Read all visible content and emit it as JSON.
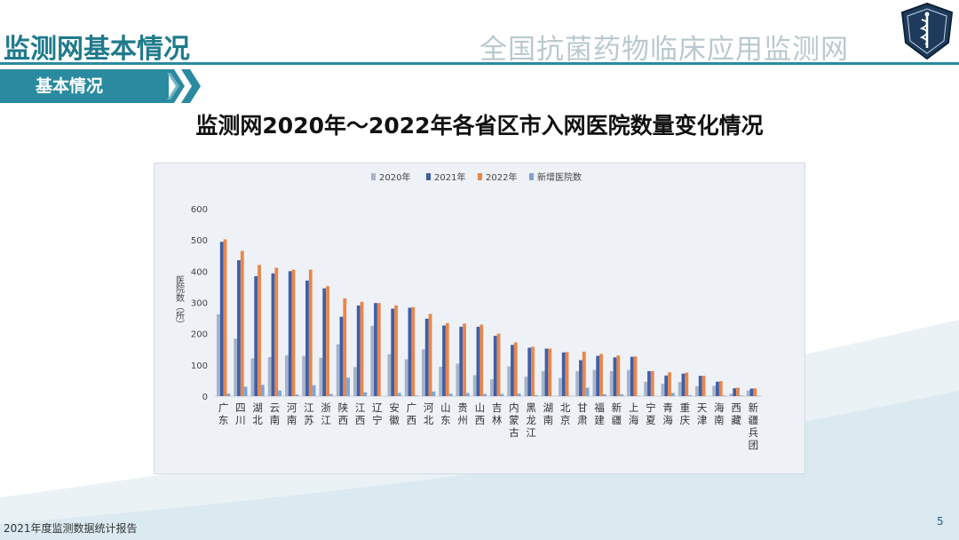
{
  "header": {
    "title": "监测网基本情况",
    "network_name": "全国抗菌药物临床应用监测网"
  },
  "section": {
    "label": "基本情况"
  },
  "chart_title": "监测网2020年～2022年各省区市入网医院数量变化情况",
  "footer": {
    "report": "2021年度监测数据统计报告",
    "page": "5"
  },
  "colors": {
    "accent": "#2a8aa0",
    "s2020": "#a5b4c8",
    "s2021": "#3f5ea8",
    "s2022": "#e8874a",
    "snew": "#7ca6d6"
  },
  "chart_data": {
    "type": "bar",
    "ylabel": "医院数（所）",
    "ylim": [
      0,
      600
    ],
    "yticks": [
      0,
      100,
      200,
      300,
      400,
      500,
      600
    ],
    "grid": false,
    "legend": "top-center",
    "categories": [
      "广东",
      "四川",
      "湖北",
      "云南",
      "河南",
      "江苏",
      "浙江",
      "陕西",
      "江西",
      "辽宁",
      "安徽",
      "广西",
      "河北",
      "山东",
      "贵州",
      "山西",
      "吉林",
      "内蒙古",
      "黑龙江",
      "湖南",
      "北京",
      "甘肃",
      "福建",
      "新疆",
      "上海",
      "宁夏",
      "青海",
      "重庆",
      "天津",
      "海南",
      "西藏",
      "新疆兵团"
    ],
    "series": [
      {
        "name": "2020年",
        "values": [
          262,
          184,
          121,
          125,
          131,
          129,
          123,
          166,
          93,
          225,
          134,
          118,
          150,
          94,
          104,
          67,
          54,
          95,
          62,
          80,
          58,
          80,
          84,
          80,
          84,
          46,
          40,
          45,
          32,
          33,
          8,
          18
        ]
      },
      {
        "name": "2021年",
        "values": [
          494,
          435,
          384,
          393,
          400,
          370,
          345,
          254,
          290,
          298,
          280,
          283,
          248,
          226,
          222,
          222,
          193,
          164,
          155,
          152,
          140,
          115,
          129,
          124,
          126,
          80,
          66,
          72,
          65,
          46,
          25,
          24
        ]
      },
      {
        "name": "2022年",
        "values": [
          502,
          465,
          420,
          411,
          405,
          405,
          352,
          313,
          302,
          298,
          290,
          285,
          263,
          234,
          232,
          229,
          200,
          172,
          158,
          152,
          141,
          142,
          135,
          130,
          127,
          80,
          76,
          75,
          65,
          48,
          27,
          25
        ]
      },
      {
        "name": "新增医院数",
        "values": [
          8,
          30,
          36,
          18,
          5,
          35,
          7,
          59,
          12,
          0,
          10,
          2,
          15,
          8,
          10,
          7,
          7,
          8,
          3,
          0,
          1,
          27,
          6,
          6,
          1,
          0,
          10,
          3,
          0,
          2,
          2,
          1
        ]
      }
    ]
  }
}
